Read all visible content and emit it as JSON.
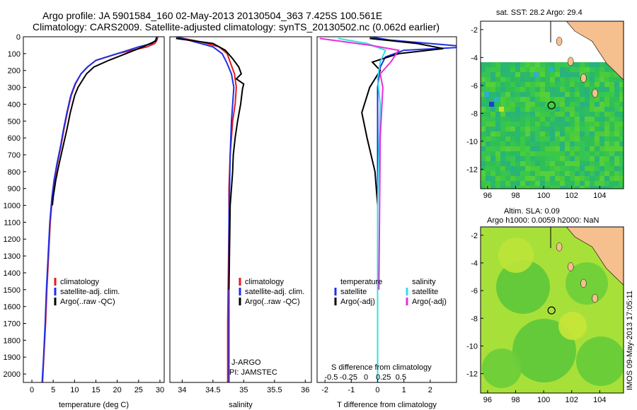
{
  "header": {
    "title1": "Argo profile: JA 5901584_160 02-May-2013 20130504_363 7.425S 100.561E",
    "title2": "Climatology: CARS2009. Satellite-adjusted climatology: synTS_20130502.nc (0.062d earlier)"
  },
  "map1": {
    "title": "sat. SST: 28.2 Argo: 29.4"
  },
  "map2": {
    "title1": "Altim. SLA: 0.09",
    "title2": "Argo h1000: 0.0059 h2000: NaN"
  },
  "side_label": "IMOS 09-May-2013 17:05:11",
  "panel_temp": {
    "legend": [
      "climatology",
      "satellite-adj. clim.",
      "Argo(..raw -QC)"
    ]
  },
  "panel_sal": {
    "legend": [
      "climatology",
      "satellite-adj. clim.",
      "Argo(..raw -QC)"
    ],
    "notes": [
      "J-ARGO",
      "PI: JAMSTEC"
    ]
  },
  "panel_diff": {
    "legend_head": [
      "temperature",
      "salinity"
    ],
    "legend_left": [
      "satellite",
      "Argo(-adj)"
    ],
    "legend_right": [
      "satellite",
      "Argo(-adj)"
    ],
    "top_label": "S difference from climatology"
  },
  "colors": {
    "climatology": "#e41a1c",
    "satellite": "#1f2fe6",
    "argo": "#000000",
    "sal_sat": "#33e0e0",
    "sal_argo": "#e52fd9",
    "land": "#f5c08e"
  },
  "chart_data": [
    {
      "type": "line",
      "xlabel": "temperature (deg C)",
      "xlim": [
        -2,
        31
      ],
      "ylim": [
        0,
        2050
      ],
      "xticks": [
        0,
        5,
        10,
        15,
        20,
        25,
        30
      ],
      "yticks": [
        0,
        100,
        200,
        300,
        400,
        500,
        600,
        700,
        800,
        900,
        1000,
        1100,
        1200,
        1300,
        1400,
        1500,
        1600,
        1700,
        1800,
        1900,
        2000
      ],
      "series": [
        {
          "name": "climatology",
          "x": [
            29.5,
            29.3,
            28.8,
            27,
            20,
            15,
            13,
            11.5,
            10.2,
            9.2,
            8.3,
            7.5,
            6.8,
            6,
            5.3,
            4.8,
            4.3,
            3.9,
            3.5,
            3.2,
            2.8,
            2.5
          ],
          "y": [
            0,
            20,
            40,
            60,
            100,
            140,
            180,
            220,
            280,
            350,
            450,
            550,
            650,
            750,
            850,
            950,
            1100,
            1300,
            1500,
            1700,
            1900,
            2050
          ]
        },
        {
          "name": "satellite-adj. clim.",
          "x": [
            29.3,
            29,
            28.2,
            25,
            20,
            15,
            13,
            11.5,
            10.1,
            9.1,
            8.2,
            7.4,
            6.7,
            5.9,
            5.2,
            4.7,
            4.2,
            3.8,
            3.4,
            3.1,
            2.75,
            2.4
          ],
          "y": [
            0,
            20,
            40,
            60,
            100,
            140,
            180,
            220,
            280,
            350,
            450,
            550,
            650,
            750,
            850,
            950,
            1100,
            1300,
            1500,
            1700,
            1900,
            2050
          ]
        },
        {
          "name": "Argo(..raw -QC)",
          "x": [
            29.2,
            29,
            26,
            22,
            18,
            14.5,
            12.8,
            11.8,
            10.8,
            10,
            9,
            8.2,
            7.3,
            6.4,
            5.6,
            5,
            4.8
          ],
          "y": [
            5,
            25,
            60,
            100,
            140,
            180,
            220,
            260,
            300,
            350,
            450,
            550,
            650,
            750,
            850,
            950,
            1000
          ]
        }
      ]
    },
    {
      "type": "line",
      "xlabel": "salinity",
      "xlim": [
        33.8,
        36.1
      ],
      "ylim": [
        0,
        2050
      ],
      "xticks": [
        34,
        34.5,
        35,
        35.5,
        36
      ],
      "series": [
        {
          "name": "climatology",
          "x": [
            33.9,
            34.3,
            34.6,
            34.73,
            34.78,
            34.85,
            34.88,
            34.86,
            34.82,
            34.8,
            34.78,
            34.76,
            34.76,
            34.75,
            34.74,
            34.74
          ],
          "y": [
            0,
            30,
            60,
            100,
            150,
            220,
            300,
            400,
            500,
            600,
            700,
            900,
            1100,
            1400,
            1700,
            2050
          ]
        },
        {
          "name": "satellite-adj. clim.",
          "x": [
            33.9,
            34.2,
            34.5,
            34.65,
            34.72,
            34.8,
            34.84,
            34.82,
            34.8,
            34.79,
            34.78,
            34.77,
            34.76,
            34.76,
            34.76,
            34.76
          ],
          "y": [
            0,
            30,
            60,
            100,
            150,
            220,
            300,
            400,
            500,
            600,
            700,
            900,
            1100,
            1400,
            1700,
            2050
          ]
        },
        {
          "name": "Argo(..raw -QC)",
          "x": [
            33.9,
            34.5,
            34.7,
            34.82,
            34.92,
            34.96,
            34.88,
            35.0,
            34.98,
            34.95,
            34.9,
            34.86,
            34.83,
            34.82,
            34.8,
            34.78,
            34.76
          ],
          "y": [
            10,
            40,
            80,
            130,
            180,
            220,
            250,
            280,
            310,
            400,
            500,
            600,
            700,
            800,
            900,
            1000,
            1500
          ]
        }
      ]
    },
    {
      "type": "line",
      "xlabel": "T difference from climatology",
      "top_label": "S difference from climatology",
      "xlim": [
        -2.3,
        3
      ],
      "ylim": [
        0,
        2050
      ],
      "xticks": [
        -2,
        -1,
        0,
        1,
        2
      ],
      "top_ticks": [
        -0.5,
        -0.25,
        0,
        0.25,
        0.5
      ],
      "series": [
        {
          "name": "temperature satellite",
          "x": [
            -0.3,
            0.5,
            3.5,
            1.0,
            0.3,
            0.1,
            0,
            0,
            0,
            0,
            0
          ],
          "y": [
            0,
            20,
            60,
            80,
            120,
            180,
            300,
            600,
            1000,
            1500,
            2050
          ]
        },
        {
          "name": "temperature Argo(-adj)",
          "x": [
            -0.3,
            1.5,
            2.5,
            0.8,
            -0.2,
            0.1,
            -0.3,
            -0.6,
            -0.4,
            -0.1,
            0
          ],
          "y": [
            10,
            40,
            70,
            100,
            150,
            200,
            300,
            450,
            600,
            800,
            1000
          ]
        },
        {
          "name": "salinity satellite",
          "x": [
            -1.5,
            -0.4,
            0.3,
            0.1,
            0,
            0.1,
            0.05,
            0,
            0,
            0
          ],
          "y": [
            10,
            40,
            80,
            150,
            250,
            400,
            700,
            1000,
            1500,
            2050
          ]
        },
        {
          "name": "salinity Argo(-adj)",
          "x": [
            -2.2,
            -0.3,
            0.8,
            0.5,
            0.1,
            0.2,
            0.1,
            0.05
          ],
          "y": [
            10,
            50,
            80,
            150,
            220,
            300,
            600,
            1500
          ]
        }
      ]
    },
    {
      "type": "heatmap",
      "title": "sat. SST: 28.2 Argo: 29.4",
      "xlim": [
        95.5,
        105.7
      ],
      "ylim": [
        -13.4,
        -1.4
      ],
      "xticks": [
        96,
        98,
        100,
        102,
        104
      ],
      "yticks": [
        -2,
        -4,
        -6,
        -8,
        -10,
        -12
      ],
      "argo_point": [
        100.56,
        -7.43
      ]
    },
    {
      "type": "heatmap",
      "title": "Altim. SLA: 0.09",
      "xlim": [
        95.5,
        105.7
      ],
      "ylim": [
        -13.4,
        -1.4
      ],
      "xticks": [
        96,
        98,
        100,
        102,
        104
      ],
      "yticks": [
        -2,
        -4,
        -6,
        -8,
        -10,
        -12
      ],
      "argo_point": [
        100.56,
        -7.43
      ]
    }
  ]
}
